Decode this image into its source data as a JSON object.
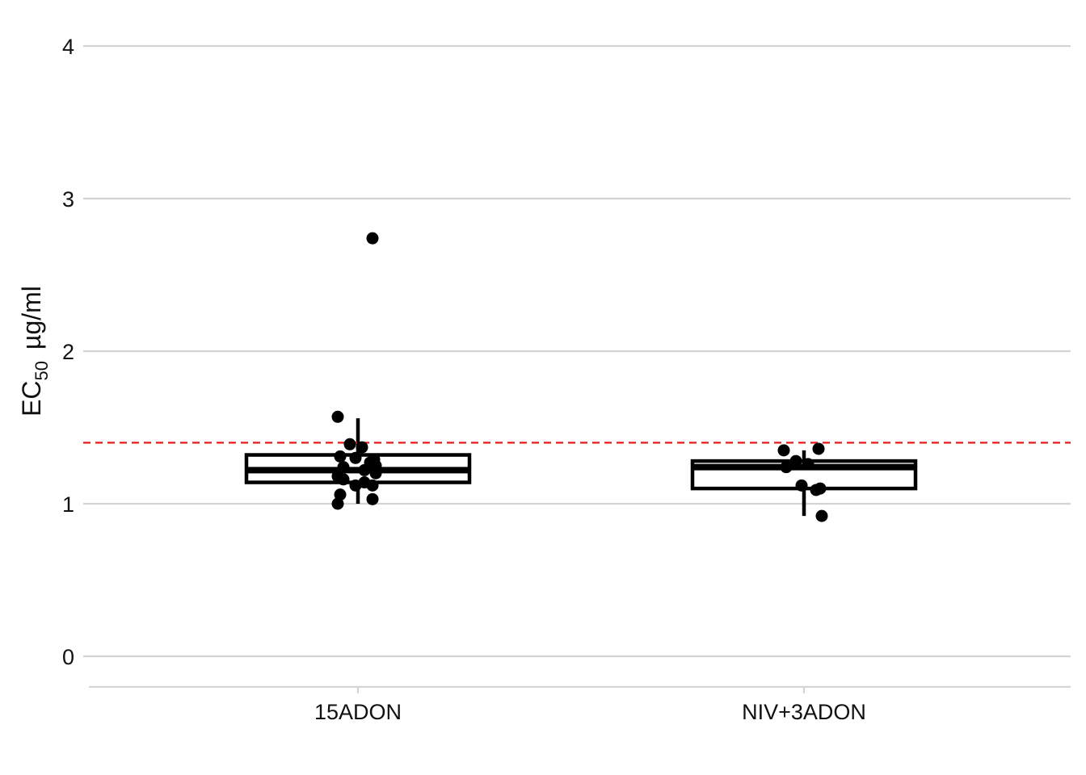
{
  "chart_data": {
    "type": "box",
    "ylabel": {
      "main": "EC",
      "subscript": "50",
      "unit": "µg/ml"
    },
    "categories": [
      "15ADON",
      "NIV+3ADON"
    ],
    "yticks": [
      "0",
      "1",
      "2",
      "3",
      "4"
    ],
    "ylim": [
      -0.2,
      4.1
    ],
    "grid": "horizontal",
    "reference_line": {
      "y": 1.4,
      "color": "#e8191b",
      "style": "dashed"
    },
    "box_stats": [
      {
        "category": "15ADON",
        "lower_whisker": 1.0,
        "q1": 1.14,
        "median": 1.22,
        "q3": 1.32,
        "upper_whisker": 1.56
      },
      {
        "category": "NIV+3ADON",
        "lower_whisker": 0.92,
        "q1": 1.1,
        "median": 1.24,
        "q3": 1.28,
        "upper_whisker": 1.35
      }
    ],
    "points": [
      {
        "category": "15ADON",
        "values": [
          2.74,
          1.57,
          1.39,
          1.37,
          1.31,
          1.3,
          1.29,
          1.27,
          1.25,
          1.24,
          1.22,
          1.2,
          1.18,
          1.16,
          1.14,
          1.12,
          1.12,
          1.06,
          1.03,
          1.0
        ]
      },
      {
        "category": "NIV+3ADON",
        "values": [
          1.36,
          1.35,
          1.28,
          1.26,
          1.24,
          1.12,
          1.1,
          1.09,
          0.92
        ]
      }
    ]
  }
}
